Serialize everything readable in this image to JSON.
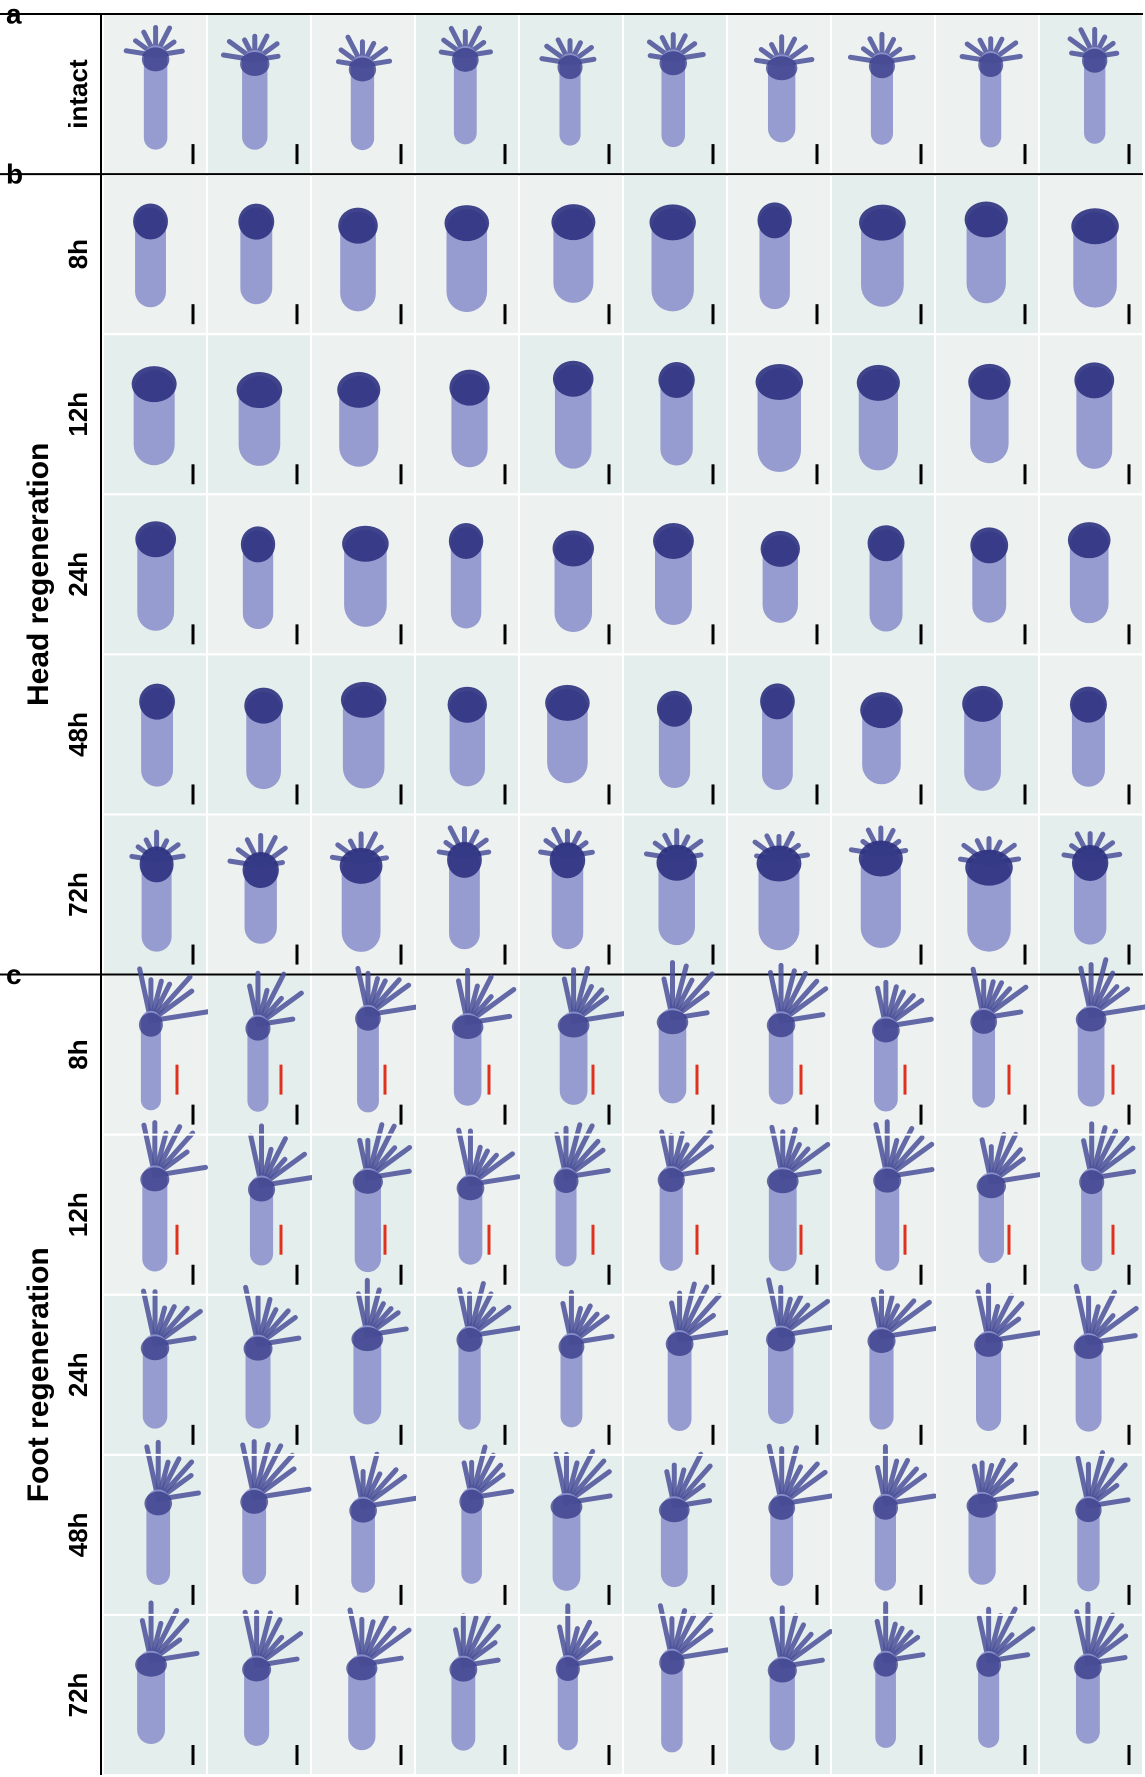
{
  "sections": [
    {
      "letter": "a",
      "rows": [
        {
          "label": "intact"
        }
      ]
    },
    {
      "letter": "b",
      "group": "Head regeneration",
      "rows": [
        {
          "label": "8h"
        },
        {
          "label": "12h"
        },
        {
          "label": "24h"
        },
        {
          "label": "48h"
        },
        {
          "label": "72h"
        }
      ]
    },
    {
      "letter": "c",
      "group": "Foot regeneration",
      "rows": [
        {
          "label": "8h"
        },
        {
          "label": "12h"
        },
        {
          "label": "24h"
        },
        {
          "label": "48h"
        },
        {
          "label": "72h"
        }
      ]
    }
  ]
}
